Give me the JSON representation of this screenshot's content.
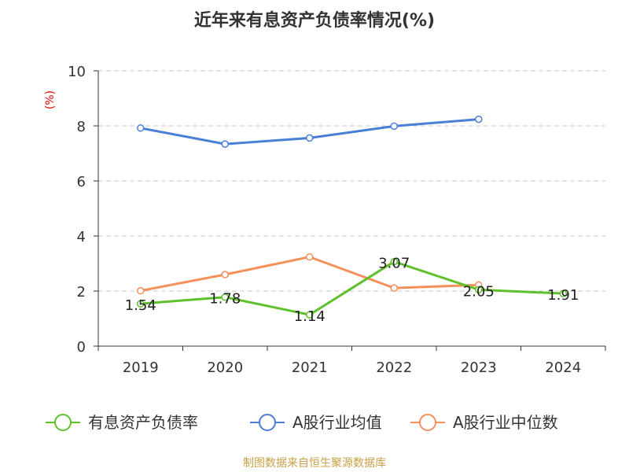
{
  "chart_data": {
    "type": "line",
    "title": "近年来有息资产负债率情况(%)",
    "ylabel": "(%)",
    "xlabel": "",
    "categories": [
      "2019",
      "2020",
      "2021",
      "2022",
      "2023",
      "2024"
    ],
    "ylim": [
      0,
      10
    ],
    "yticks": [
      "0",
      "2",
      "4",
      "6",
      "8",
      "10"
    ],
    "grid": true,
    "legend_position": "bottom",
    "series": [
      {
        "name": "有息资产负债率",
        "color": "#5ec02a",
        "values": [
          1.54,
          1.78,
          1.14,
          3.07,
          2.05,
          1.91
        ],
        "labels": [
          "1.54",
          "1.78",
          "1.14",
          "3.07",
          "2.05",
          "1.91"
        ]
      },
      {
        "name": "A股行业均值",
        "color": "#4a7fd8",
        "values": [
          7.92,
          7.34,
          7.56,
          7.99,
          8.24,
          null
        ]
      },
      {
        "name": "A股行业中位数",
        "color": "#f5905a",
        "values": [
          2.01,
          2.6,
          3.24,
          2.11,
          2.22,
          null
        ]
      }
    ]
  },
  "source": "制图数据来自恒生聚源数据库"
}
